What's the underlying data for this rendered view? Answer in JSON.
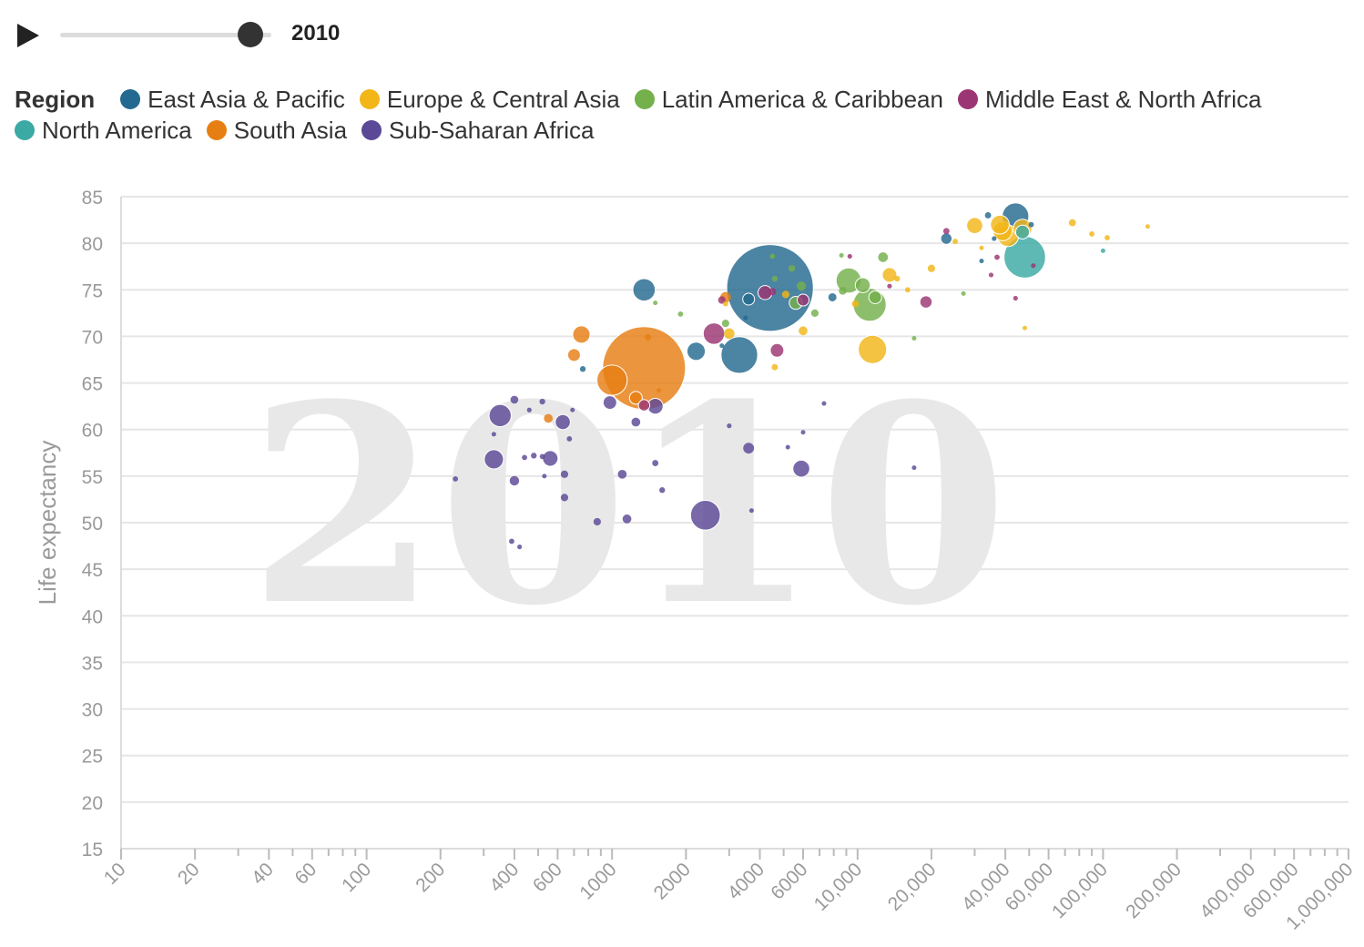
{
  "controls": {
    "play_icon": "play-icon",
    "year_label": "2010",
    "slider_value": 2010
  },
  "legend": {
    "title": "Region",
    "items": [
      {
        "label": "East Asia & Pacific",
        "color": "#24698f"
      },
      {
        "label": "Europe & Central Asia",
        "color": "#f2b619"
      },
      {
        "label": "Latin America & Caribbean",
        "color": "#74b04c"
      },
      {
        "label": "Middle East & North Africa",
        "color": "#9b3573"
      },
      {
        "label": "North America",
        "color": "#3ba9a4"
      },
      {
        "label": "South Asia",
        "color": "#e67e14"
      },
      {
        "label": "Sub-Saharan Africa",
        "color": "#5b4896"
      }
    ]
  },
  "chart_data": {
    "type": "scatter",
    "title": "",
    "watermark": "2010",
    "xlabel": "",
    "ylabel": "Life expectancy",
    "x_scale": "log",
    "xlim": [
      10,
      1000000
    ],
    "ylim": [
      15,
      85
    ],
    "grid": true,
    "legend_position": "top",
    "xticks": [
      10,
      20,
      30,
      40,
      50,
      60,
      70,
      80,
      90,
      100,
      200,
      300,
      400,
      500,
      600,
      700,
      800,
      900,
      1000,
      2000,
      3000,
      4000,
      5000,
      6000,
      7000,
      8000,
      9000,
      10000,
      20000,
      30000,
      40000,
      50000,
      60000,
      70000,
      80000,
      90000,
      100000,
      200000,
      300000,
      400000,
      500000,
      600000,
      700000,
      800000,
      900000,
      1000000
    ],
    "xtick_labels": [
      {
        "value": 10,
        "label": "10"
      },
      {
        "value": 20,
        "label": "20"
      },
      {
        "value": 40,
        "label": "40"
      },
      {
        "value": 60,
        "label": "60"
      },
      {
        "value": 100,
        "label": "100"
      },
      {
        "value": 200,
        "label": "200"
      },
      {
        "value": 400,
        "label": "400"
      },
      {
        "value": 600,
        "label": "600"
      },
      {
        "value": 1000,
        "label": "1000"
      },
      {
        "value": 2000,
        "label": "2000"
      },
      {
        "value": 4000,
        "label": "4000"
      },
      {
        "value": 6000,
        "label": "6000"
      },
      {
        "value": 10000,
        "label": "10,000"
      },
      {
        "value": 20000,
        "label": "20,000"
      },
      {
        "value": 40000,
        "label": "40,000"
      },
      {
        "value": 60000,
        "label": "60,000"
      },
      {
        "value": 100000,
        "label": "100,000"
      },
      {
        "value": 200000,
        "label": "200,000"
      },
      {
        "value": 400000,
        "label": "400,000"
      },
      {
        "value": 600000,
        "label": "600,000"
      },
      {
        "value": 1000000,
        "label": "1,000,000"
      }
    ],
    "yticks": [
      {
        "value": 15,
        "label": "15"
      },
      {
        "value": 20,
        "label": "20"
      },
      {
        "value": 25,
        "label": "25"
      },
      {
        "value": 30,
        "label": "30"
      },
      {
        "value": 35,
        "label": "35"
      },
      {
        "value": 40,
        "label": "40"
      },
      {
        "value": 45,
        "label": "45"
      },
      {
        "value": 50,
        "label": "50"
      },
      {
        "value": 55,
        "label": "55"
      },
      {
        "value": 60,
        "label": "60"
      },
      {
        "value": 65,
        "label": "65"
      },
      {
        "value": 70,
        "label": "70"
      },
      {
        "value": 75,
        "label": "75"
      },
      {
        "value": 80,
        "label": "80"
      },
      {
        "value": 85,
        "label": "85"
      }
    ],
    "series": [
      {
        "name": "East Asia & Pacific",
        "color": "#24698f",
        "points": [
          {
            "x": 4400,
            "y": 75.2,
            "s": 1340
          },
          {
            "x": 3300,
            "y": 68.0,
            "s": 240
          },
          {
            "x": 1350,
            "y": 75.0,
            "s": 90
          },
          {
            "x": 2200,
            "y": 68.4,
            "s": 60
          },
          {
            "x": 44000,
            "y": 82.9,
            "s": 127
          },
          {
            "x": 23000,
            "y": 80.5,
            "s": 23
          },
          {
            "x": 3600,
            "y": 74.0,
            "s": 25
          },
          {
            "x": 760,
            "y": 66.5,
            "s": 6
          },
          {
            "x": 34000,
            "y": 83.0,
            "s": 7
          },
          {
            "x": 51000,
            "y": 82.0,
            "s": 5
          },
          {
            "x": 7900,
            "y": 74.2,
            "s": 12
          },
          {
            "x": 36000,
            "y": 80.5,
            "s": 4
          },
          {
            "x": 3500,
            "y": 72.0,
            "s": 4
          },
          {
            "x": 32000,
            "y": 78.1,
            "s": 3
          },
          {
            "x": 2800,
            "y": 69.0,
            "s": 3
          }
        ]
      },
      {
        "name": "Europe & Central Asia",
        "color": "#f2b619",
        "points": [
          {
            "x": 11500,
            "y": 68.6,
            "s": 143
          },
          {
            "x": 41000,
            "y": 80.8,
            "s": 82
          },
          {
            "x": 39000,
            "y": 81.3,
            "s": 65
          },
          {
            "x": 38000,
            "y": 82.0,
            "s": 63
          },
          {
            "x": 47000,
            "y": 81.6,
            "s": 60
          },
          {
            "x": 13500,
            "y": 76.6,
            "s": 38
          },
          {
            "x": 30000,
            "y": 81.9,
            "s": 46
          },
          {
            "x": 5100,
            "y": 74.5,
            "s": 10
          },
          {
            "x": 3000,
            "y": 70.3,
            "s": 20
          },
          {
            "x": 9800,
            "y": 73.5,
            "s": 9
          },
          {
            "x": 75000,
            "y": 82.2,
            "s": 9
          },
          {
            "x": 90000,
            "y": 81.0,
            "s": 5
          },
          {
            "x": 104000,
            "y": 80.6,
            "s": 5
          },
          {
            "x": 20000,
            "y": 77.3,
            "s": 10
          },
          {
            "x": 25000,
            "y": 80.2,
            "s": 5
          },
          {
            "x": 152000,
            "y": 81.8,
            "s": 3
          },
          {
            "x": 6000,
            "y": 70.6,
            "s": 14
          },
          {
            "x": 4600,
            "y": 66.7,
            "s": 7
          },
          {
            "x": 2900,
            "y": 73.5,
            "s": 5
          },
          {
            "x": 16000,
            "y": 75.0,
            "s": 5
          },
          {
            "x": 48000,
            "y": 70.9,
            "s": 3
          },
          {
            "x": 32000,
            "y": 79.5,
            "s": 3
          },
          {
            "x": 14500,
            "y": 76.2,
            "s": 6
          }
        ]
      },
      {
        "name": "Latin America & Caribbean",
        "color": "#74b04c",
        "points": [
          {
            "x": 11200,
            "y": 73.4,
            "s": 195
          },
          {
            "x": 9200,
            "y": 76.0,
            "s": 113
          },
          {
            "x": 10500,
            "y": 75.5,
            "s": 40
          },
          {
            "x": 11800,
            "y": 74.2,
            "s": 29
          },
          {
            "x": 5600,
            "y": 73.6,
            "s": 30
          },
          {
            "x": 12700,
            "y": 78.5,
            "s": 17
          },
          {
            "x": 5900,
            "y": 75.4,
            "s": 15
          },
          {
            "x": 8700,
            "y": 74.9,
            "s": 11
          },
          {
            "x": 6700,
            "y": 72.5,
            "s": 10
          },
          {
            "x": 5400,
            "y": 77.3,
            "s": 8
          },
          {
            "x": 4600,
            "y": 76.2,
            "s": 6
          },
          {
            "x": 2900,
            "y": 71.4,
            "s": 10
          },
          {
            "x": 1900,
            "y": 72.4,
            "s": 5
          },
          {
            "x": 4500,
            "y": 78.6,
            "s": 5
          },
          {
            "x": 1500,
            "y": 73.6,
            "s": 3
          },
          {
            "x": 8600,
            "y": 78.7,
            "s": 3
          },
          {
            "x": 17000,
            "y": 69.8,
            "s": 3
          },
          {
            "x": 27000,
            "y": 74.6,
            "s": 3
          }
        ]
      },
      {
        "name": "Middle East & North Africa",
        "color": "#9b3573",
        "points": [
          {
            "x": 2600,
            "y": 70.3,
            "s": 82
          },
          {
            "x": 4200,
            "y": 74.7,
            "s": 35
          },
          {
            "x": 6000,
            "y": 73.9,
            "s": 25
          },
          {
            "x": 4700,
            "y": 68.5,
            "s": 33
          },
          {
            "x": 2800,
            "y": 73.9,
            "s": 10
          },
          {
            "x": 4500,
            "y": 74.8,
            "s": 10
          },
          {
            "x": 19000,
            "y": 73.7,
            "s": 27
          },
          {
            "x": 1350,
            "y": 62.6,
            "s": 23
          },
          {
            "x": 35000,
            "y": 76.6,
            "s": 4
          },
          {
            "x": 52000,
            "y": 77.6,
            "s": 4
          },
          {
            "x": 23000,
            "y": 81.3,
            "s": 7
          },
          {
            "x": 9300,
            "y": 78.6,
            "s": 4
          },
          {
            "x": 44000,
            "y": 74.1,
            "s": 4
          },
          {
            "x": 37000,
            "y": 78.5,
            "s": 5
          },
          {
            "x": 13500,
            "y": 75.4,
            "s": 4
          }
        ]
      },
      {
        "name": "North America",
        "color": "#3ba9a4",
        "points": [
          {
            "x": 48000,
            "y": 78.5,
            "s": 309
          },
          {
            "x": 47000,
            "y": 81.2,
            "s": 34
          },
          {
            "x": 100000,
            "y": 79.2,
            "s": 3
          }
        ]
      },
      {
        "name": "South Asia",
        "color": "#e67e14",
        "points": [
          {
            "x": 1350,
            "y": 66.6,
            "s": 1224
          },
          {
            "x": 750,
            "y": 70.2,
            "s": 54
          },
          {
            "x": 1000,
            "y": 65.3,
            "s": 164
          },
          {
            "x": 550,
            "y": 61.2,
            "s": 14
          },
          {
            "x": 700,
            "y": 68.0,
            "s": 29
          },
          {
            "x": 1250,
            "y": 63.4,
            "s": 29
          },
          {
            "x": 2900,
            "y": 74.2,
            "s": 20
          },
          {
            "x": 1400,
            "y": 69.9,
            "s": 7
          },
          {
            "x": 1550,
            "y": 64.2,
            "s": 3
          }
        ]
      },
      {
        "name": "Sub-Saharan Africa",
        "color": "#5b4896",
        "points": [
          {
            "x": 2400,
            "y": 50.8,
            "s": 158
          },
          {
            "x": 350,
            "y": 61.5,
            "s": 88
          },
          {
            "x": 5900,
            "y": 55.8,
            "s": 51
          },
          {
            "x": 330,
            "y": 56.8,
            "s": 66
          },
          {
            "x": 560,
            "y": 56.9,
            "s": 43
          },
          {
            "x": 630,
            "y": 60.8,
            "s": 41
          },
          {
            "x": 1500,
            "y": 62.5,
            "s": 44
          },
          {
            "x": 980,
            "y": 62.9,
            "s": 33
          },
          {
            "x": 3600,
            "y": 58.0,
            "s": 21
          },
          {
            "x": 400,
            "y": 63.2,
            "s": 11
          },
          {
            "x": 400,
            "y": 54.5,
            "s": 16
          },
          {
            "x": 1100,
            "y": 55.2,
            "s": 14
          },
          {
            "x": 1150,
            "y": 50.4,
            "s": 14
          },
          {
            "x": 1250,
            "y": 60.8,
            "s": 14
          },
          {
            "x": 640,
            "y": 55.2,
            "s": 10
          },
          {
            "x": 870,
            "y": 50.1,
            "s": 10
          },
          {
            "x": 640,
            "y": 52.7,
            "s": 10
          },
          {
            "x": 1500,
            "y": 56.4,
            "s": 7
          },
          {
            "x": 520,
            "y": 63.0,
            "s": 6
          },
          {
            "x": 440,
            "y": 57.0,
            "s": 5
          },
          {
            "x": 480,
            "y": 57.2,
            "s": 6
          },
          {
            "x": 390,
            "y": 48.0,
            "s": 5
          },
          {
            "x": 420,
            "y": 47.4,
            "s": 4
          },
          {
            "x": 230,
            "y": 54.7,
            "s": 5
          },
          {
            "x": 1600,
            "y": 53.5,
            "s": 6
          },
          {
            "x": 3000,
            "y": 60.4,
            "s": 4
          },
          {
            "x": 3700,
            "y": 51.3,
            "s": 3
          },
          {
            "x": 7300,
            "y": 62.8,
            "s": 3
          },
          {
            "x": 5200,
            "y": 58.1,
            "s": 3
          },
          {
            "x": 6000,
            "y": 59.7,
            "s": 3
          },
          {
            "x": 17000,
            "y": 55.9,
            "s": 3
          },
          {
            "x": 530,
            "y": 55.0,
            "s": 3
          },
          {
            "x": 670,
            "y": 59.0,
            "s": 5
          },
          {
            "x": 520,
            "y": 57.1,
            "s": 5
          },
          {
            "x": 460,
            "y": 62.1,
            "s": 4
          },
          {
            "x": 330,
            "y": 59.5,
            "s": 3
          },
          {
            "x": 690,
            "y": 62.1,
            "s": 3
          }
        ]
      }
    ]
  }
}
